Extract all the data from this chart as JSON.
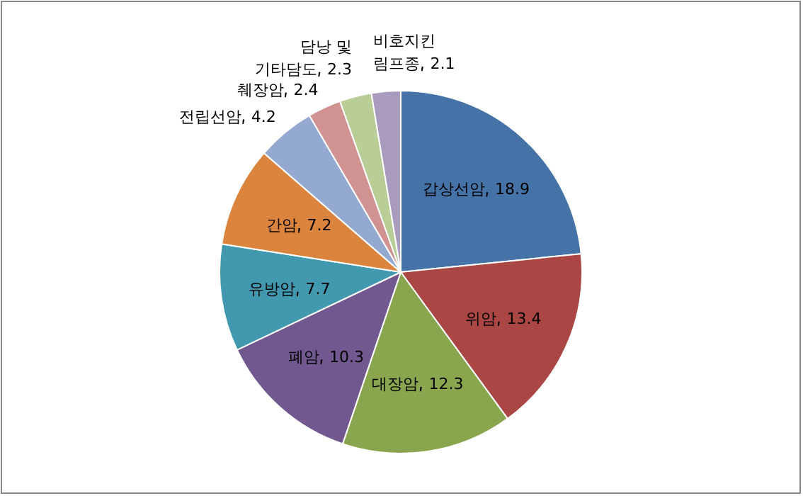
{
  "chart_data": {
    "type": "pie",
    "categories": [
      "갑상선암",
      "위암",
      "대장암",
      "폐암",
      "유방암",
      "간암",
      "전립선암",
      "췌장암",
      "담낭 및 기타담도",
      "비호지킨 림프종"
    ],
    "values": [
      18.9,
      13.4,
      12.3,
      10.3,
      7.7,
      7.2,
      4.2,
      2.4,
      2.3,
      2.1
    ],
    "colors": [
      "#4572a7",
      "#aa4643",
      "#89a54e",
      "#71588f",
      "#4198af",
      "#db843d",
      "#93a9cf",
      "#d19392",
      "#b9cd96",
      "#a99bbd"
    ],
    "data_labels": true,
    "legend": false
  }
}
